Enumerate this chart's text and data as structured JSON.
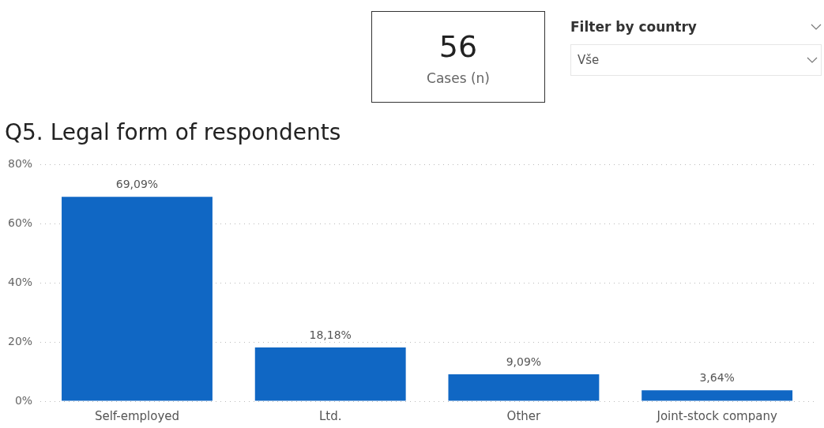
{
  "chart_data": [
    {
      "type": "other",
      "annotations": [
        "56",
        "Cases (n)"
      ]
    },
    {
      "type": "other",
      "title": "Filter by country",
      "annotations": [
        "Vše"
      ]
    },
    {
      "type": "bar",
      "title": "Q5. Legal form of respondents",
      "categories": [
        "Self-employed",
        "Ltd.",
        "Other",
        "Joint-stock company"
      ],
      "values": [
        69.09,
        18.18,
        9.09,
        3.64
      ],
      "value_labels": [
        "69,09%",
        "18,18%",
        "9,09%",
        "3,64%"
      ],
      "color": "#1067c4",
      "ylim": [
        0,
        80
      ],
      "yticks": [
        {
          "value": 0,
          "label": "0%"
        },
        {
          "value": 20,
          "label": "20%"
        },
        {
          "value": 40,
          "label": "40%"
        },
        {
          "value": 60,
          "label": "60%"
        },
        {
          "value": 80,
          "label": "80%"
        }
      ],
      "grid": "y",
      "legend": false
    }
  ]
}
